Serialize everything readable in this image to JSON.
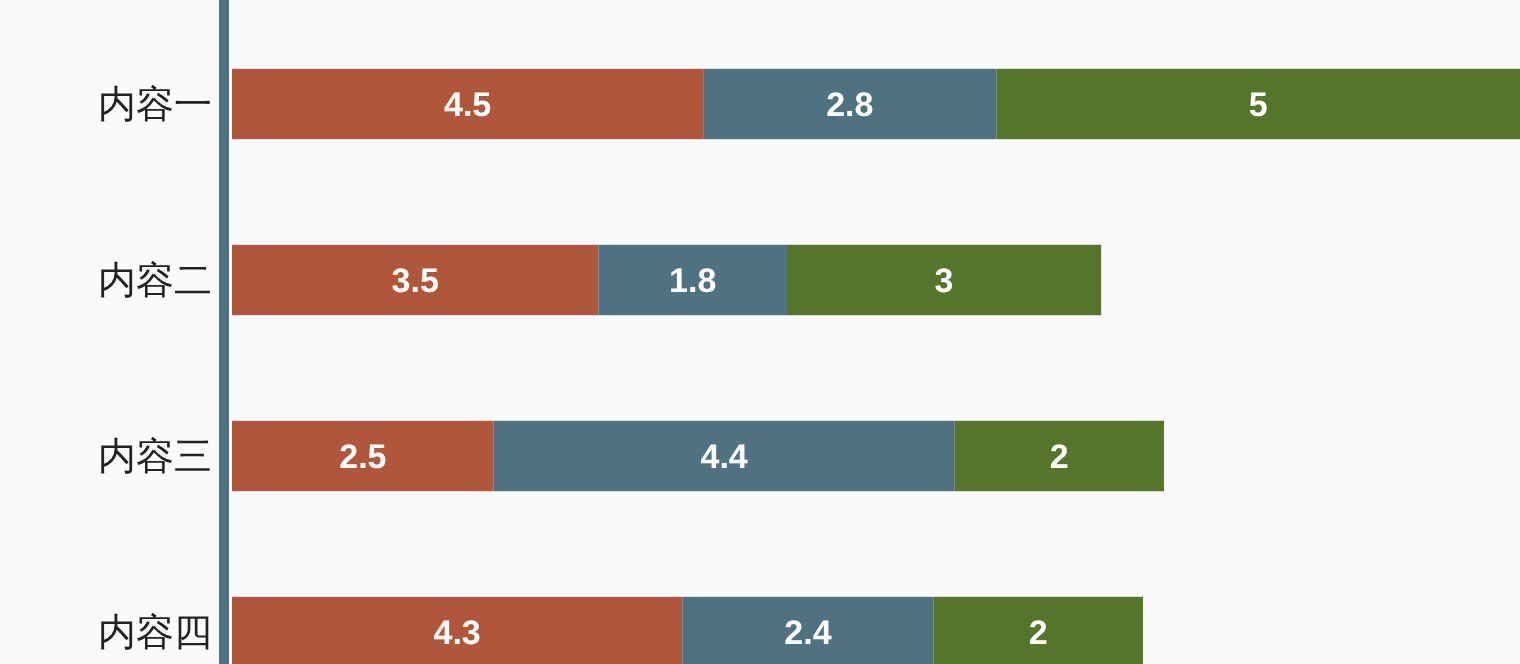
{
  "chart_data": {
    "type": "bar",
    "orientation": "horizontal",
    "stacked": true,
    "data_labels": true,
    "tick_labels": "y",
    "categories": [
      "内容一",
      "内容二",
      "内容三",
      "内容四"
    ],
    "series": [
      {
        "color": "#b0563a",
        "values": [
          4.5,
          3.5,
          2.5,
          4.3
        ]
      },
      {
        "color": "#4f7282",
        "values": [
          2.8,
          1.8,
          4.4,
          2.4
        ]
      },
      {
        "color": "#55752a",
        "values": [
          5,
          3,
          2,
          2
        ]
      }
    ]
  }
}
